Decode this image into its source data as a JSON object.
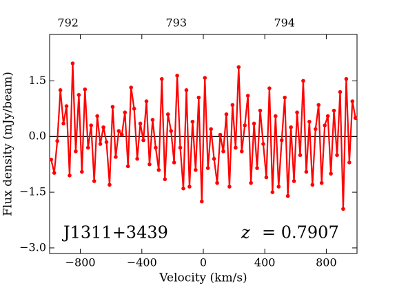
{
  "chart_data": {
    "type": "line",
    "xlabel": "Velocity (km/s)",
    "ylabel": "Flux density (mJy/beam)",
    "annotations": [
      "J1311+3439"
    ],
    "redshift": {
      "symbol": "z",
      "text": "= 0.7907"
    },
    "x": [
      -990,
      -970,
      -950,
      -930,
      -910,
      -890,
      -870,
      -850,
      -830,
      -810,
      -790,
      -770,
      -750,
      -730,
      -710,
      -690,
      -670,
      -650,
      -630,
      -610,
      -590,
      -570,
      -550,
      -530,
      -510,
      -490,
      -470,
      -450,
      -430,
      -410,
      -390,
      -370,
      -350,
      -330,
      -310,
      -290,
      -270,
      -250,
      -230,
      -210,
      -190,
      -170,
      -150,
      -130,
      -110,
      -90,
      -70,
      -50,
      -30,
      -10,
      10,
      30,
      50,
      70,
      90,
      110,
      130,
      150,
      170,
      190,
      210,
      230,
      250,
      270,
      290,
      310,
      330,
      350,
      370,
      390,
      410,
      430,
      450,
      470,
      490,
      510,
      530,
      550,
      570,
      590,
      610,
      630,
      650,
      670,
      690,
      710,
      730,
      750,
      770,
      790,
      810,
      830,
      850,
      870,
      890,
      910,
      930,
      950,
      970,
      990
    ],
    "series": [
      {
        "color": "#ff0000",
        "values": [
          -0.62,
          -0.98,
          -0.12,
          1.25,
          0.35,
          0.82,
          -1.05,
          1.97,
          -0.4,
          1.12,
          -0.95,
          1.27,
          -0.3,
          0.3,
          -1.2,
          0.55,
          -0.2,
          0.25,
          -0.15,
          -1.3,
          0.8,
          -0.55,
          0.15,
          0.05,
          0.65,
          -0.8,
          1.32,
          0.75,
          -0.6,
          0.35,
          -0.1,
          0.95,
          -0.75,
          0.45,
          -0.3,
          -0.9,
          1.55,
          -1.15,
          0.6,
          0.15,
          -0.7,
          1.64,
          -0.3,
          -1.4,
          1.25,
          -1.35,
          0.4,
          -0.9,
          1.05,
          -1.75,
          1.58,
          -0.85,
          0.2,
          -0.6,
          -1.25,
          0.05,
          -0.4,
          0.6,
          -1.35,
          0.85,
          -0.3,
          1.87,
          -0.4,
          0.3,
          1.1,
          -1.25,
          0.35,
          -0.85,
          0.7,
          -0.2,
          -1.1,
          1.3,
          -1.5,
          0.55,
          -1.35,
          -0.1,
          1.05,
          -1.6,
          0.25,
          -1.2,
          0.65,
          -0.5,
          1.5,
          -0.95,
          0.4,
          -1.3,
          0.2,
          0.85,
          -1.25,
          0.3,
          0.55,
          -1.0,
          0.7,
          -0.5,
          1.2,
          -1.95,
          1.55,
          -0.7,
          0.95,
          0.5
        ]
      }
    ],
    "hline": 0,
    "xlim": [
      -1000,
      1000
    ],
    "xticks": [
      {
        "value": -800,
        "label": "−800"
      },
      {
        "value": -400,
        "label": "−400"
      },
      0,
      400,
      800
    ],
    "ylim": [
      -3.15,
      2.75
    ],
    "yticks": [
      {
        "value": -3.0,
        "label": "−3.0"
      },
      {
        "value": -1.5,
        "label": "−1.5"
      },
      {
        "value": 0,
        "label": "0.0"
      },
      1.5
    ],
    "x2lim": [
      791.83,
      794.67
    ],
    "x2ticks": [
      792,
      793,
      794
    ]
  }
}
